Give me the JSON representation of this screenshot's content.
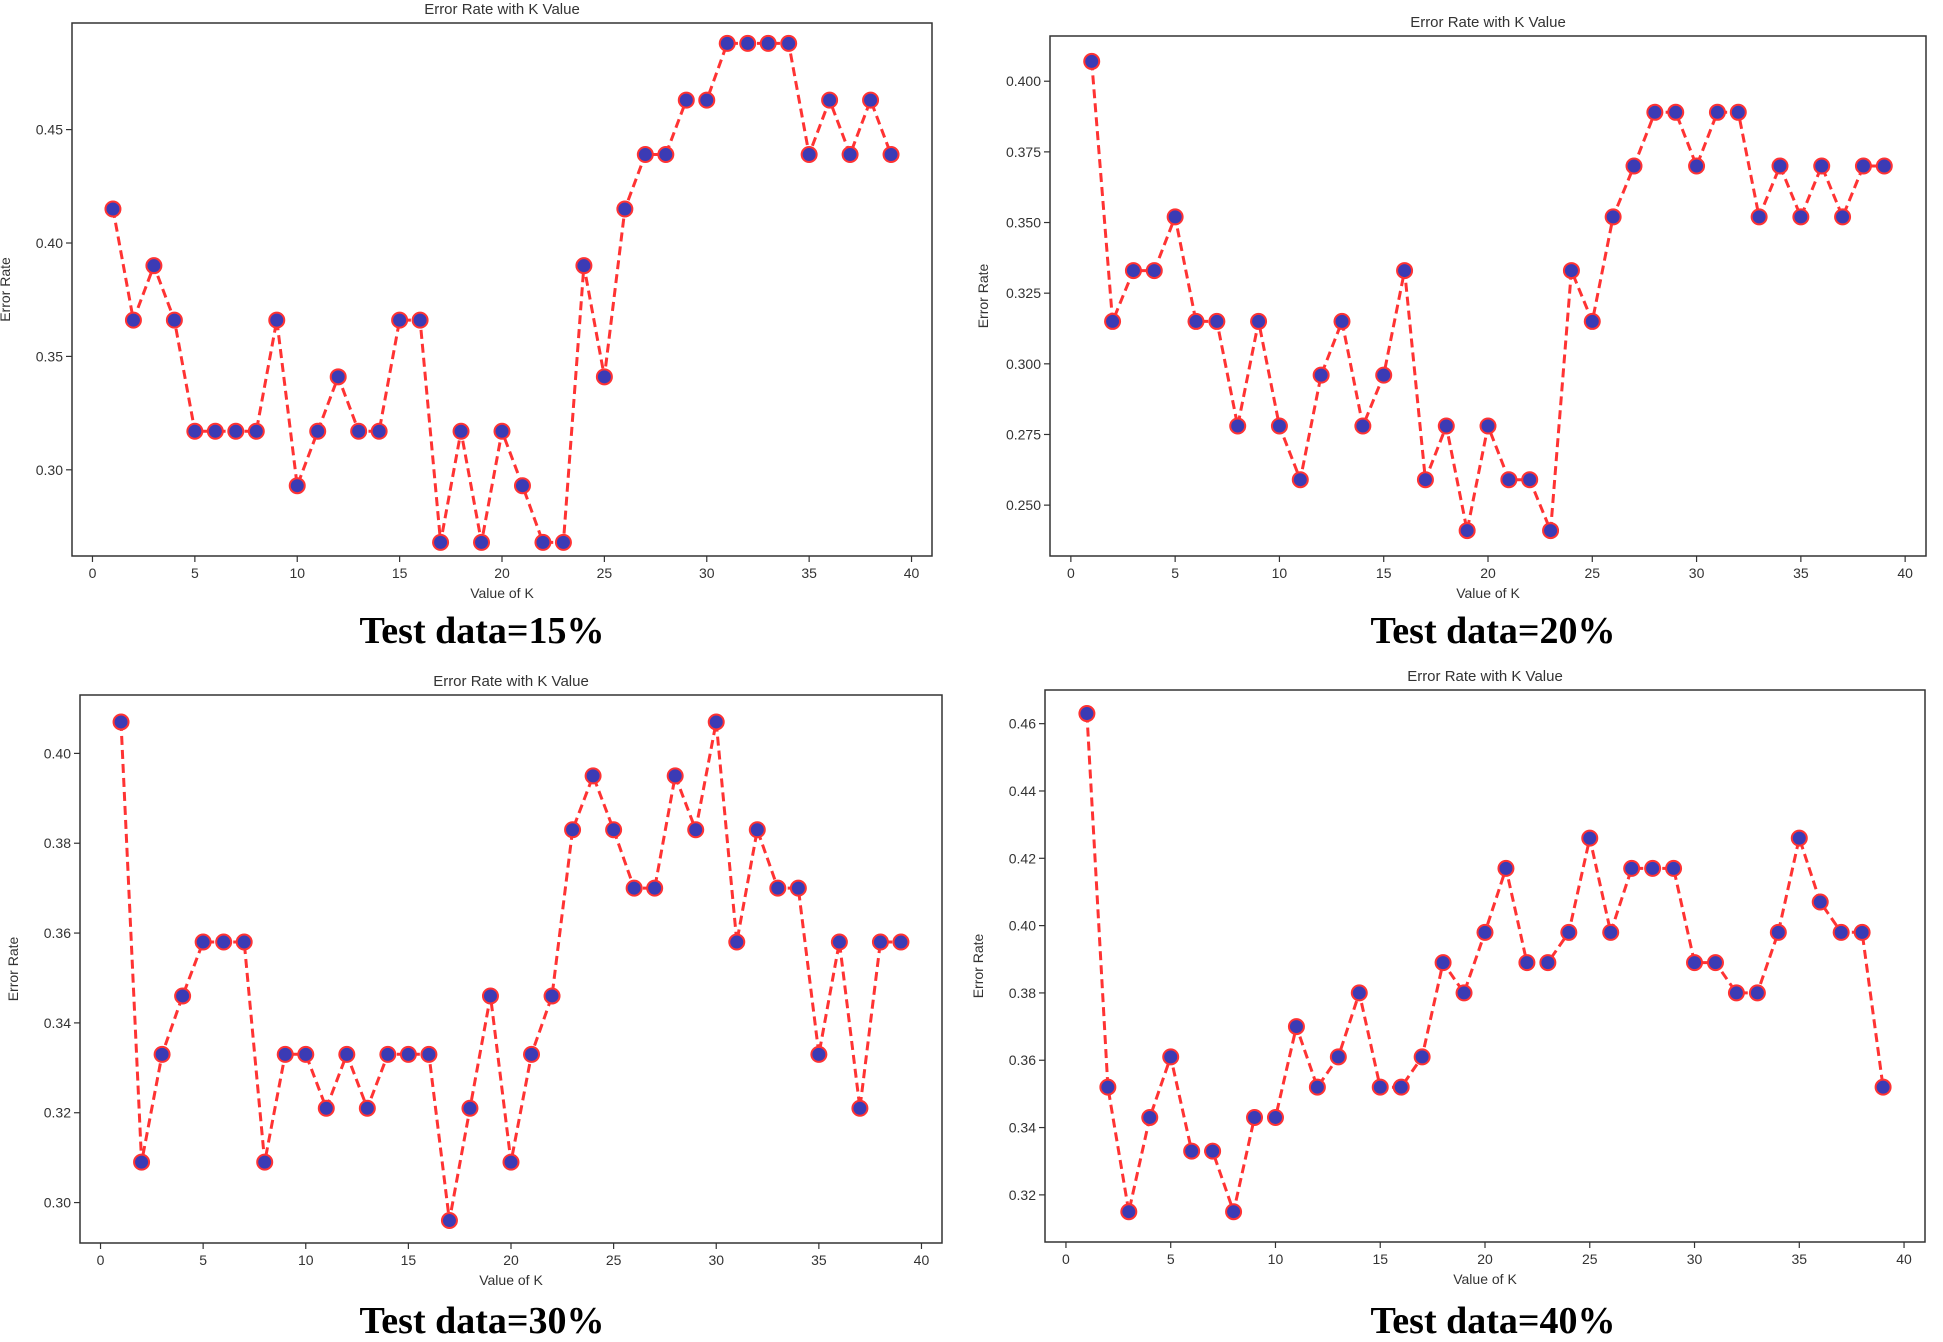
{
  "figure": {
    "colors": {
      "line": "#ff3333",
      "marker_fill": "#3b3bb5",
      "marker_edge": "#ff3333",
      "axis": "#333333"
    }
  },
  "chart_data": [
    {
      "type": "line",
      "title": "Error Rate with K Value",
      "xlabel": "Value of K",
      "ylabel": "Error Rate",
      "caption": "Test data=15%",
      "xlim": [
        -1,
        41
      ],
      "ylim": [
        0.262,
        0.497
      ],
      "xticks": [
        "0",
        "5",
        "10",
        "15",
        "20",
        "25",
        "30",
        "35",
        "40"
      ],
      "xtick_values": [
        0,
        5,
        10,
        15,
        20,
        25,
        30,
        35,
        40
      ],
      "yticks": [
        "0.30",
        "0.35",
        "0.40",
        "0.45"
      ],
      "ytick_values": [
        0.3,
        0.35,
        0.4,
        0.45
      ],
      "x": [
        1,
        2,
        3,
        4,
        5,
        6,
        7,
        8,
        9,
        10,
        11,
        12,
        13,
        14,
        15,
        16,
        17,
        18,
        19,
        20,
        21,
        22,
        23,
        24,
        25,
        26,
        27,
        28,
        29,
        30,
        31,
        32,
        33,
        34,
        35,
        36,
        37,
        38,
        39
      ],
      "values": [
        0.415,
        0.366,
        0.39,
        0.366,
        0.317,
        0.317,
        0.317,
        0.317,
        0.366,
        0.293,
        0.317,
        0.341,
        0.317,
        0.317,
        0.366,
        0.366,
        0.268,
        0.317,
        0.268,
        0.317,
        0.293,
        0.268,
        0.268,
        0.39,
        0.341,
        0.415,
        0.439,
        0.439,
        0.463,
        0.463,
        0.488,
        0.488,
        0.488,
        0.488,
        0.439,
        0.463,
        0.439,
        0.463,
        0.439
      ]
    },
    {
      "type": "line",
      "title": "Error Rate with K Value",
      "xlabel": "Value of K",
      "ylabel": "Error Rate",
      "caption": "Test data=20%",
      "xlim": [
        -1,
        41
      ],
      "ylim": [
        0.232,
        0.416
      ],
      "xticks": [
        "0",
        "5",
        "10",
        "15",
        "20",
        "25",
        "30",
        "35",
        "40"
      ],
      "xtick_values": [
        0,
        5,
        10,
        15,
        20,
        25,
        30,
        35,
        40
      ],
      "yticks": [
        "0.250",
        "0.275",
        "0.300",
        "0.325",
        "0.350",
        "0.375",
        "0.400"
      ],
      "ytick_values": [
        0.25,
        0.275,
        0.3,
        0.325,
        0.35,
        0.375,
        0.4
      ],
      "x": [
        1,
        2,
        3,
        4,
        5,
        6,
        7,
        8,
        9,
        10,
        11,
        12,
        13,
        14,
        15,
        16,
        17,
        18,
        19,
        20,
        21,
        22,
        23,
        24,
        25,
        26,
        27,
        28,
        29,
        30,
        31,
        32,
        33,
        34,
        35,
        36,
        37,
        38,
        39
      ],
      "values": [
        0.407,
        0.315,
        0.333,
        0.333,
        0.352,
        0.315,
        0.315,
        0.278,
        0.315,
        0.278,
        0.259,
        0.296,
        0.315,
        0.278,
        0.296,
        0.333,
        0.259,
        0.278,
        0.241,
        0.278,
        0.259,
        0.259,
        0.241,
        0.333,
        0.315,
        0.352,
        0.37,
        0.389,
        0.389,
        0.37,
        0.389,
        0.389,
        0.352,
        0.37,
        0.352,
        0.37,
        0.352,
        0.37,
        0.37
      ]
    },
    {
      "type": "line",
      "title": "Error Rate with K Value",
      "xlabel": "Value of K",
      "ylabel": "Error Rate",
      "caption": "Test data=30%",
      "xlim": [
        -1,
        41
      ],
      "ylim": [
        0.291,
        0.413
      ],
      "xticks": [
        "0",
        "5",
        "10",
        "15",
        "20",
        "25",
        "30",
        "35",
        "40"
      ],
      "xtick_values": [
        0,
        5,
        10,
        15,
        20,
        25,
        30,
        35,
        40
      ],
      "yticks": [
        "0.30",
        "0.32",
        "0.34",
        "0.36",
        "0.38",
        "0.40"
      ],
      "ytick_values": [
        0.3,
        0.32,
        0.34,
        0.36,
        0.38,
        0.4
      ],
      "x": [
        1,
        2,
        3,
        4,
        5,
        6,
        7,
        8,
        9,
        10,
        11,
        12,
        13,
        14,
        15,
        16,
        17,
        18,
        19,
        20,
        21,
        22,
        23,
        24,
        25,
        26,
        27,
        28,
        29,
        30,
        31,
        32,
        33,
        34,
        35,
        36,
        37,
        38,
        39
      ],
      "values": [
        0.407,
        0.309,
        0.333,
        0.346,
        0.358,
        0.358,
        0.358,
        0.309,
        0.333,
        0.333,
        0.321,
        0.333,
        0.321,
        0.333,
        0.333,
        0.333,
        0.296,
        0.321,
        0.346,
        0.309,
        0.333,
        0.346,
        0.383,
        0.395,
        0.383,
        0.37,
        0.37,
        0.395,
        0.383,
        0.407,
        0.358,
        0.383,
        0.37,
        0.37,
        0.333,
        0.358,
        0.321,
        0.358,
        0.358
      ]
    },
    {
      "type": "line",
      "title": "Error Rate with K Value",
      "xlabel": "Value of K",
      "ylabel": "Error Rate",
      "caption": "Test data=40%",
      "xlim": [
        -1,
        41
      ],
      "ylim": [
        0.306,
        0.47
      ],
      "xticks": [
        "0",
        "5",
        "10",
        "15",
        "20",
        "25",
        "30",
        "35",
        "40"
      ],
      "xtick_values": [
        0,
        5,
        10,
        15,
        20,
        25,
        30,
        35,
        40
      ],
      "yticks": [
        "0.32",
        "0.34",
        "0.36",
        "0.38",
        "0.40",
        "0.42",
        "0.44",
        "0.46"
      ],
      "ytick_values": [
        0.32,
        0.34,
        0.36,
        0.38,
        0.4,
        0.42,
        0.44,
        0.46
      ],
      "x": [
        1,
        2,
        3,
        4,
        5,
        6,
        7,
        8,
        9,
        10,
        11,
        12,
        13,
        14,
        15,
        16,
        17,
        18,
        19,
        20,
        21,
        22,
        23,
        24,
        25,
        26,
        27,
        28,
        29,
        30,
        31,
        32,
        33,
        34,
        35,
        36,
        37,
        38,
        39
      ],
      "values": [
        0.463,
        0.352,
        0.315,
        0.343,
        0.361,
        0.333,
        0.333,
        0.315,
        0.343,
        0.343,
        0.37,
        0.352,
        0.361,
        0.38,
        0.352,
        0.352,
        0.361,
        0.389,
        0.38,
        0.398,
        0.417,
        0.389,
        0.389,
        0.398,
        0.426,
        0.398,
        0.417,
        0.417,
        0.417,
        0.389,
        0.389,
        0.38,
        0.38,
        0.398,
        0.426,
        0.407,
        0.398,
        0.398,
        0.352
      ]
    }
  ]
}
